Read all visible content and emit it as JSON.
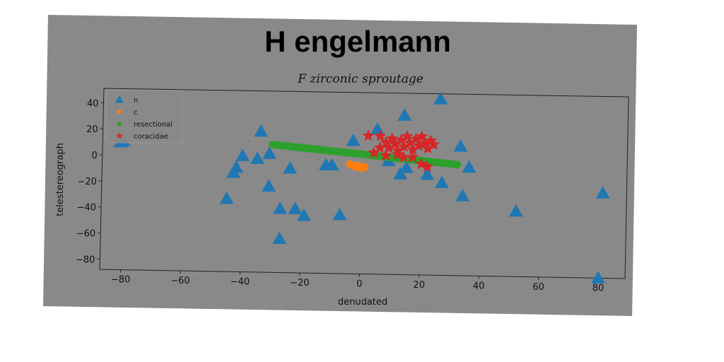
{
  "chart_data": {
    "type": "scatter",
    "title": "H engelmann",
    "subtitle": "F zirconic sproutage",
    "xlabel": "denudated",
    "ylabel": "telestereograph",
    "xlim": [
      -87,
      89
    ],
    "ylim": [
      -88,
      51
    ],
    "xticks": [
      -80,
      -60,
      -40,
      -20,
      0,
      20,
      40,
      60,
      80
    ],
    "yticks": [
      40,
      20,
      0,
      -20,
      -40,
      -60,
      -80
    ],
    "legend_position": "top-left",
    "grid": false,
    "series": [
      {
        "name": "n",
        "marker": "triangle",
        "color": "#1f77b4",
        "points": [
          [
            -80,
            11
          ],
          [
            -81,
            10
          ],
          [
            -45,
            -32
          ],
          [
            -43,
            -12
          ],
          [
            -42,
            -8
          ],
          [
            -40,
            1
          ],
          [
            -35,
            -1
          ],
          [
            -34,
            20
          ],
          [
            -31,
            3
          ],
          [
            -31,
            -22
          ],
          [
            -27,
            -39
          ],
          [
            -27,
            -62
          ],
          [
            -24,
            -8
          ],
          [
            -22,
            -39
          ],
          [
            -19,
            -44
          ],
          [
            -12,
            -5
          ],
          [
            -10,
            -5
          ],
          [
            -7,
            -43
          ],
          [
            -3,
            14
          ],
          [
            5,
            23
          ],
          [
            9,
            -1
          ],
          [
            13,
            -11
          ],
          [
            14,
            34
          ],
          [
            15,
            -6
          ],
          [
            22,
            -11
          ],
          [
            26,
            47
          ],
          [
            27,
            -17
          ],
          [
            33,
            11
          ],
          [
            34,
            -27
          ],
          [
            36,
            -5
          ],
          [
            52,
            -38
          ],
          [
            81,
            -23
          ],
          [
            80,
            -88
          ]
        ]
      },
      {
        "name": "c",
        "marker": "circle",
        "color": "#ff7f0e",
        "points": [
          [
            -3,
            -5
          ],
          [
            -2,
            -6
          ],
          [
            -1,
            -6
          ],
          [
            0,
            -7
          ],
          [
            -4,
            -4
          ],
          [
            -1,
            -5
          ],
          [
            1,
            -6
          ]
        ]
      },
      {
        "name": "resectional",
        "marker": "circle",
        "color": "#2ca02c",
        "line_from": [
          -30,
          10
        ],
        "line_to": [
          32,
          -3
        ],
        "points_count": 70
      },
      {
        "name": "coracidae",
        "marker": "star",
        "color": "#d62728",
        "points": [
          [
            2,
            18
          ],
          [
            6,
            18
          ],
          [
            8,
            13
          ],
          [
            9,
            9
          ],
          [
            10,
            16
          ],
          [
            11,
            12
          ],
          [
            12,
            7
          ],
          [
            13,
            15
          ],
          [
            14,
            10
          ],
          [
            15,
            18
          ],
          [
            16,
            13
          ],
          [
            17,
            8
          ],
          [
            18,
            16
          ],
          [
            19,
            11
          ],
          [
            20,
            18
          ],
          [
            21,
            13
          ],
          [
            22,
            9
          ],
          [
            23,
            15
          ],
          [
            24,
            12
          ],
          [
            8,
            3
          ],
          [
            12,
            4
          ],
          [
            17,
            2
          ],
          [
            20,
            -3
          ],
          [
            22,
            -5
          ],
          [
            6,
            9
          ],
          [
            4,
            5
          ],
          [
            14,
            2
          ]
        ]
      }
    ]
  }
}
